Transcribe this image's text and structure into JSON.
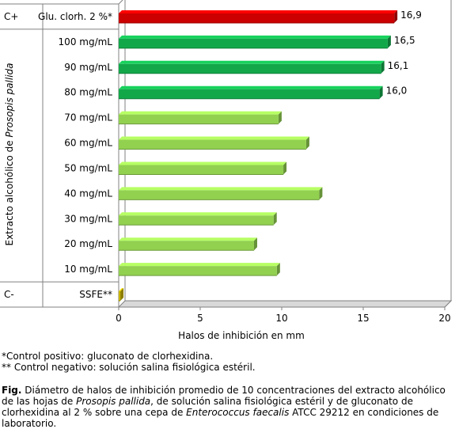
{
  "chart_data": {
    "type": "bar",
    "orientation": "horizontal",
    "title": "",
    "xlabel": "Halos de inhibición en mm",
    "ylabel_prefix": "Extracto alcohólico de ",
    "ylabel_italic": "Prosopis pallida",
    "xlim": [
      0,
      20
    ],
    "xticks": [
      "0",
      "5",
      "10",
      "15",
      "20"
    ],
    "grid": true,
    "groups": [
      {
        "label": "C+",
        "categories": [
          0
        ]
      },
      {
        "label": "",
        "categories": [
          1,
          2,
          3,
          4,
          5,
          6,
          7,
          8,
          9,
          10
        ]
      },
      {
        "label": "C-",
        "categories": [
          11
        ]
      }
    ],
    "categories": [
      "Glu. clorh. 2 %*",
      "100 mg/mL",
      "90 mg/mL",
      "80 mg/mL",
      "70 mg/mL",
      "60 mg/mL",
      "50 mg/mL",
      "40 mg/mL",
      "30 mg/mL",
      "20 mg/mL",
      "10 mg/mL",
      "SSFE**"
    ],
    "values": [
      16.9,
      16.5,
      16.1,
      16.0,
      9.8,
      11.5,
      10.1,
      12.3,
      9.5,
      8.3,
      9.7,
      0.1
    ],
    "data_labels": [
      "16,9",
      "16,5",
      "16,1",
      "16,0",
      "",
      "",
      "",
      "",
      "",
      "",
      "",
      ""
    ],
    "colors": [
      "#cc0000",
      "#12a84a",
      "#12a84a",
      "#12a84a",
      "#92d050",
      "#92d050",
      "#92d050",
      "#92d050",
      "#92d050",
      "#92d050",
      "#92d050",
      "#c9b400"
    ]
  },
  "notes": [
    "*Control positivo: gluconato de clorhexidina.",
    "** Control negativo: solución salina fisiológica estéril."
  ],
  "caption": {
    "fig_label": "Fig.",
    "t1": " Diámetro de halos de inhibición promedio de 10 concentraciones del extracto alcohólico de las hojas de ",
    "t2": "Prosopis pallida",
    "t3": ", de solución salina fisiológica estéril y de gluconato de clorhexidina al 2 % sobre una cepa de ",
    "t4": "Enterococcus faecalis",
    "t5": " ATCC 29212 en condiciones de laboratorio."
  }
}
